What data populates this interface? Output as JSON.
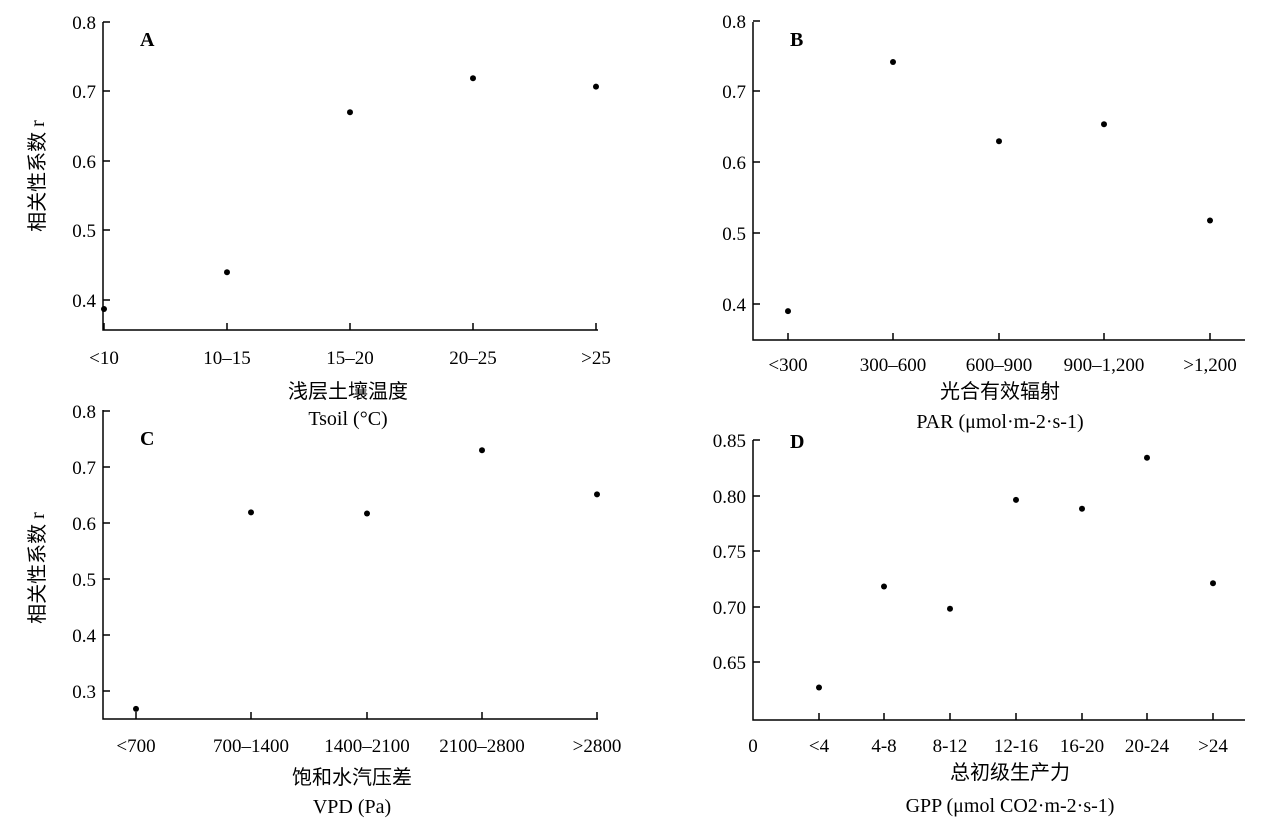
{
  "chart_data": [
    {
      "panel": "A",
      "type": "scatter",
      "categories": [
        "<10",
        "10–15",
        "15–20",
        "20–25",
        ">25"
      ],
      "values": [
        0.387,
        0.44,
        0.67,
        0.719,
        0.707
      ],
      "ylim": [
        0.35,
        0.8
      ],
      "yticks": [
        "0.4",
        "0.5",
        "0.6",
        "0.7",
        "0.8"
      ],
      "ylabel": "相关性系数 r",
      "xlabel_line1": "浅层土壤温度",
      "xlabel_line2": "Tsoil (°C)"
    },
    {
      "panel": "B",
      "type": "scatter",
      "categories": [
        "<300",
        "300–600",
        "600–900",
        "900–1,200",
        ">1,200"
      ],
      "values": [
        0.39,
        0.742,
        0.63,
        0.654,
        0.518
      ],
      "ylim": [
        0.35,
        0.8
      ],
      "yticks": [
        "0.4",
        "0.5",
        "0.6",
        "0.7",
        "0.8"
      ],
      "ylabel": "",
      "xlabel_line1": "光合有效辐射",
      "xlabel_line2": "PAR (μmol·m-2·s-1)"
    },
    {
      "panel": "C",
      "type": "scatter",
      "categories": [
        "<700",
        "700–1400",
        "1400–2100",
        "2100–2800",
        ">2800"
      ],
      "values": [
        0.268,
        0.619,
        0.617,
        0.73,
        0.651
      ],
      "ylim": [
        0.25,
        0.8
      ],
      "yticks": [
        "0.3",
        "0.4",
        "0.5",
        "0.6",
        "0.7",
        "0.8"
      ],
      "ylabel": "相关性系数 r",
      "xlabel_line1": "饱和水汽压差",
      "xlabel_line2": "VPD (Pa)"
    },
    {
      "panel": "D",
      "type": "scatter",
      "categories": [
        "0",
        "<4",
        "4-8",
        "8-12",
        "12-16",
        "16-20",
        "20-24",
        ">24"
      ],
      "values": [
        null,
        0.627,
        0.718,
        0.698,
        0.796,
        0.788,
        0.834,
        0.721
      ],
      "ylim": [
        0.6,
        0.85
      ],
      "yticks": [
        "0.65",
        "0.70",
        "0.75",
        "0.80",
        "0.85"
      ],
      "ylabel": "",
      "xlabel_line1": "总初级生产力",
      "xlabel_line2": "GPP (μmol CO2·m-2·s-1)"
    }
  ]
}
